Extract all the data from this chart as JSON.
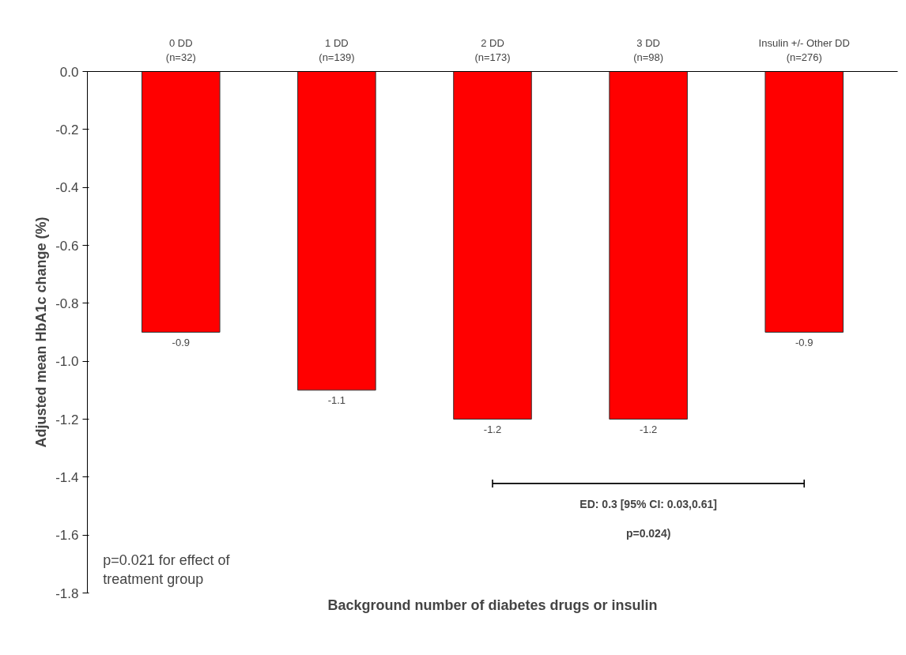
{
  "chart_data": {
    "type": "bar",
    "xlabel": "Background number of diabetes drugs or insulin",
    "ylabel": "Adjusted mean HbA1c change (%)",
    "categories": [
      "0 DD\n(n=32)",
      "1 DD\n(n=139)",
      "2 DD\n(n=173)",
      "3 DD\n(n=98)",
      "Insulin +/- Other DD\n(n=276)"
    ],
    "values": [
      -0.9,
      -1.1,
      -1.2,
      -1.2,
      -0.9
    ],
    "color": "#ff0000",
    "data_labels": true,
    "ylim": [
      -1.8,
      0
    ],
    "yticks": [
      {
        "value": 0,
        "label": "0.0"
      },
      -0.2,
      -0.4,
      -0.6,
      -0.8,
      {
        "value": -1.0,
        "label": "-1.0"
      },
      -1.2,
      -1.4,
      -1.6,
      -1.8
    ],
    "annotations": [
      "ED: 0.3 [95% CI: 0.03,0.61]",
      "p=0.024)",
      "p=0.021 for effect of\ntreatment group"
    ],
    "grid": false
  }
}
